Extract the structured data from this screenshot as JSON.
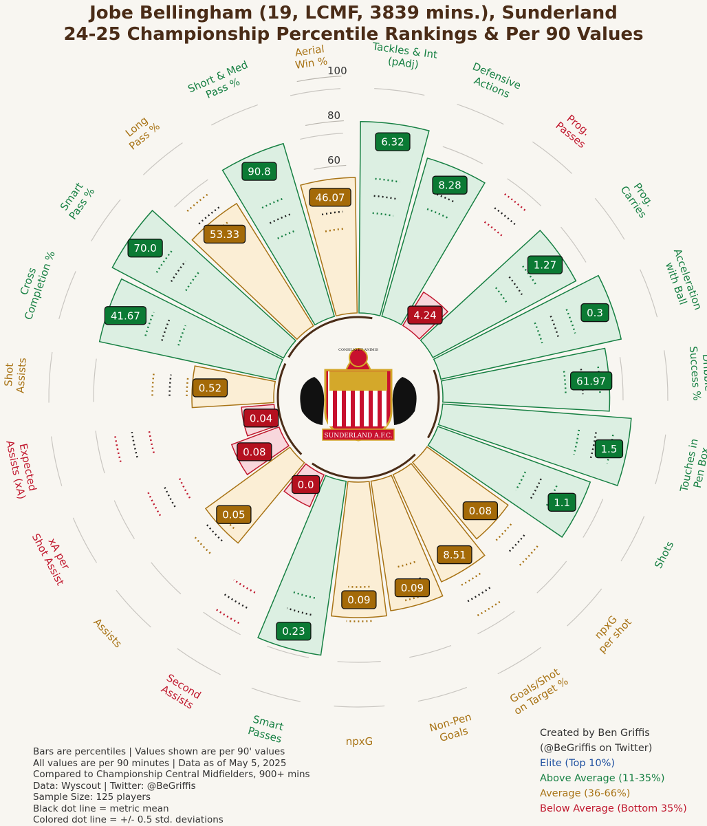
{
  "title": {
    "line1": "Jobe Bellingham (19, LCMF, 3839 mins.), Sunderland",
    "line2": "24-25 Championship Percentile Rankings & Per 90 Values"
  },
  "colors": {
    "elite": "#1d4fa0",
    "above": "#178043",
    "average": "#a87315",
    "below": "#c0172d",
    "brown": "#4a2c17"
  },
  "chart_data": {
    "type": "radial-bar",
    "radial_ticks": [
      "0",
      "20",
      "40",
      "60",
      "80",
      "100"
    ],
    "rlim": [
      0,
      100
    ],
    "metrics": [
      {
        "label": "Aerial\nWin %",
        "value": "46.07",
        "percentile": 60,
        "tier": "average"
      },
      {
        "label": "Tackles & Int\n(pAdj)",
        "value": "6.32",
        "percentile": 85,
        "tier": "above"
      },
      {
        "label": "Defensive\nActions",
        "value": "8.28",
        "percentile": 73,
        "tier": "above"
      },
      {
        "label": "Prog.\nPasses",
        "value": "4.24",
        "percentile": 17,
        "tier": "below"
      },
      {
        "label": "Prog.\nCarries",
        "value": "1.27",
        "percentile": 72,
        "tier": "above"
      },
      {
        "label": "Acceleration\nwith Ball",
        "value": "0.3",
        "percentile": 82,
        "tier": "above"
      },
      {
        "label": "Dribble\nSuccess %",
        "value": "61.97",
        "percentile": 74,
        "tier": "above"
      },
      {
        "label": "Touches in\nPen Box",
        "value": "1.5",
        "percentile": 84,
        "tier": "above"
      },
      {
        "label": "Shots",
        "value": "1.1",
        "percentile": 72,
        "tier": "above"
      },
      {
        "label": "npxG\nper shot",
        "value": "0.08",
        "percentile": 44,
        "tier": "average"
      },
      {
        "label": "Goals/Shot\non Target %",
        "value": "8.51",
        "percentile": 52,
        "tier": "average"
      },
      {
        "label": "Non-Pen\nGoals",
        "value": "0.09",
        "percentile": 58,
        "tier": "average"
      },
      {
        "label": "npxG",
        "value": "0.09",
        "percentile": 60,
        "tier": "average"
      },
      {
        "label": "Smart\nPasses",
        "value": "0.23",
        "percentile": 78,
        "tier": "above"
      },
      {
        "label": "Second\nAssists",
        "value": "0.0",
        "percentile": 15,
        "tier": "below"
      },
      {
        "label": "Assists",
        "value": "0.05",
        "percentile": 46,
        "tier": "average"
      },
      {
        "label": "xA per\nShot Assist",
        "value": "0.08",
        "percentile": 22,
        "tier": "below"
      },
      {
        "label": "Expected\nAssists (xA)",
        "value": "0.04",
        "percentile": 14,
        "tier": "below"
      },
      {
        "label": "Shot\nAssists",
        "value": "0.52",
        "percentile": 36,
        "tier": "average"
      },
      {
        "label": "Cross\nCompletion %",
        "value": "41.67",
        "percentile": 80,
        "tier": "above"
      },
      {
        "label": "Smart\nPass %",
        "value": "70.0",
        "percentile": 86,
        "tier": "above"
      },
      {
        "label": "Long\nPass %",
        "value": "53.33",
        "percentile": 64,
        "tier": "average"
      },
      {
        "label": "Short & Med\nPass %",
        "value": "90.8",
        "percentile": 80,
        "tier": "above"
      }
    ],
    "legend": [
      {
        "label": "Elite (Top 10%)",
        "tier": "elite"
      },
      {
        "label": "Above Average (11-35%)",
        "tier": "above"
      },
      {
        "label": "Average (36-66%)",
        "tier": "average"
      },
      {
        "label": "Below Average (Bottom 35%)",
        "tier": "below"
      }
    ]
  },
  "logo": {
    "club_text": "SUNDERLAND A.F.C.",
    "top_text": "CONSILIO ET ANIMIS"
  },
  "notes": [
    "Bars are percentiles | Values shown are per 90' values",
    "All values are per 90 minutes | Data as of May 5, 2025",
    "Compared to Championship Central Midfielders, 900+ mins",
    "Data: Wyscout | Twitter: @BeGriffis",
    "Sample Size: 125 players",
    "Black dot line = metric mean",
    "Colored dot line = +/- 0.5 std. deviations"
  ],
  "credit": {
    "line1": "Created by Ben Griffis",
    "line2": "(@BeGriffis on Twitter)"
  }
}
